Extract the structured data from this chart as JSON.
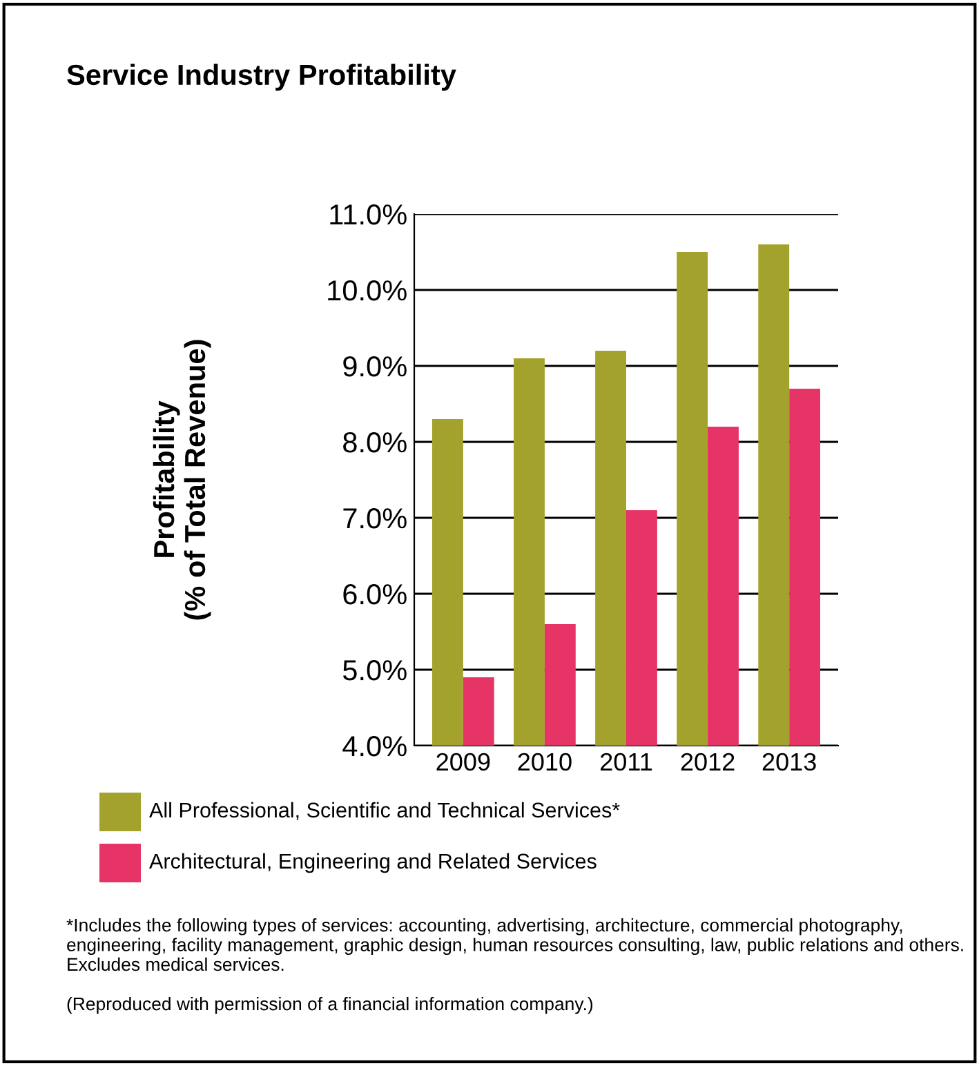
{
  "chart_data": {
    "type": "bar",
    "title": "Service Industry Profitability",
    "ylabel": "Profitability\n(% of Total Revenue)",
    "categories": [
      "2009",
      "2010",
      "2011",
      "2012",
      "2013"
    ],
    "series": [
      {
        "name": "All Professional, Scientific and Technical Services*",
        "color": "#a3a22c",
        "values": [
          8.3,
          9.1,
          9.2,
          10.5,
          10.6
        ]
      },
      {
        "name": "Architectural, Engineering and Related Services",
        "color": "#e73466",
        "values": [
          4.9,
          5.6,
          7.1,
          8.2,
          8.7
        ]
      }
    ],
    "ylim": [
      4.0,
      11.0
    ],
    "yticks": [
      {
        "value": 4.0,
        "label": "4.0%"
      },
      {
        "value": 5.0,
        "label": "5.0%"
      },
      {
        "value": 6.0,
        "label": "6.0%"
      },
      {
        "value": 7.0,
        "label": "7.0%"
      },
      {
        "value": 8.0,
        "label": "8.0%"
      },
      {
        "value": 9.0,
        "label": "9.0%"
      },
      {
        "value": 10.0,
        "label": "10.0%"
      },
      {
        "value": 11.0,
        "label": "11.0%"
      }
    ],
    "grid": "y",
    "legend": "bottom",
    "annotations": [
      "*Includes the following types of services: accounting, advertising, architecture, commercial photography, engineering, facility management, graphic design, human resources consulting, law, public relations and others. Excludes medical services.",
      "(Reproduced with permission of a financial information company.)"
    ]
  }
}
